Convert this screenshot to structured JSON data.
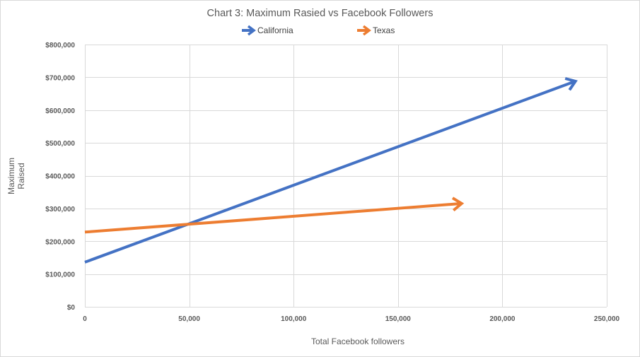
{
  "chart_data": {
    "type": "line",
    "title": "Chart 3: Maximum Rasied vs Facebook Followers",
    "xlabel": "Total Facebook followers",
    "ylabel": "Maximum Raised",
    "xlim": [
      0,
      250000
    ],
    "ylim": [
      0,
      800000
    ],
    "x_ticks": [
      0,
      50000,
      100000,
      150000,
      200000,
      250000
    ],
    "x_tick_labels": [
      "0",
      "50,000",
      "100,000",
      "150,000",
      "200,000",
      "250,000"
    ],
    "y_ticks": [
      0,
      100000,
      200000,
      300000,
      400000,
      500000,
      600000,
      700000,
      800000
    ],
    "y_tick_labels": [
      "$0",
      "$100,000",
      "$200,000",
      "$300,000",
      "$400,000",
      "$500,000",
      "$600,000",
      "$700,000",
      "$800,000"
    ],
    "grid": true,
    "legend_position": "top",
    "series": [
      {
        "name": "California",
        "color": "#4472C4",
        "marker": "arrow",
        "points": [
          [
            0,
            136000
          ],
          [
            235000,
            688000
          ]
        ]
      },
      {
        "name": "Texas",
        "color": "#ED7D31",
        "marker": "arrow",
        "points": [
          [
            0,
            228000
          ],
          [
            180500,
            315000
          ]
        ]
      }
    ]
  }
}
